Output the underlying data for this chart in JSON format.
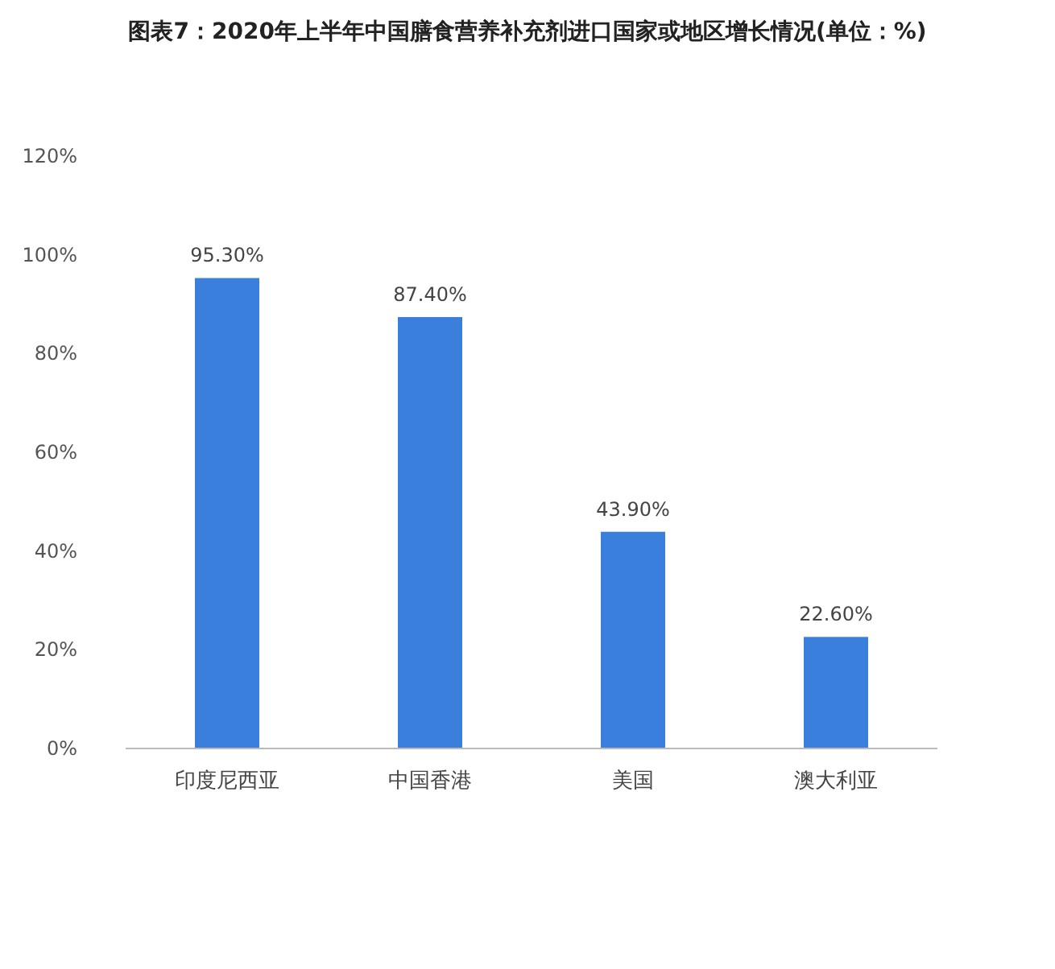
{
  "chart_data": {
    "type": "bar",
    "title": "图表7：2020年上半年中国膳食营养补充剂进口国家或地区增长情况(单位：%)",
    "categories": [
      "印度尼西亚",
      "中国香港",
      "美国",
      "澳大利亚"
    ],
    "values": [
      95.3,
      87.4,
      43.9,
      22.6
    ],
    "value_labels": [
      "95.30%",
      "87.40%",
      "43.90%",
      "22.60%"
    ],
    "color": "#3b7fdd",
    "ylim": [
      0,
      120
    ],
    "yticks": [
      {
        "value": 0,
        "label": "0%"
      },
      {
        "value": 20,
        "label": "20%"
      },
      {
        "value": 40,
        "label": "40%"
      },
      {
        "value": 60,
        "label": "60%"
      },
      {
        "value": 80,
        "label": "80%"
      },
      {
        "value": 100,
        "label": "100%"
      },
      {
        "value": 120,
        "label": "120%"
      }
    ],
    "grid": false
  }
}
